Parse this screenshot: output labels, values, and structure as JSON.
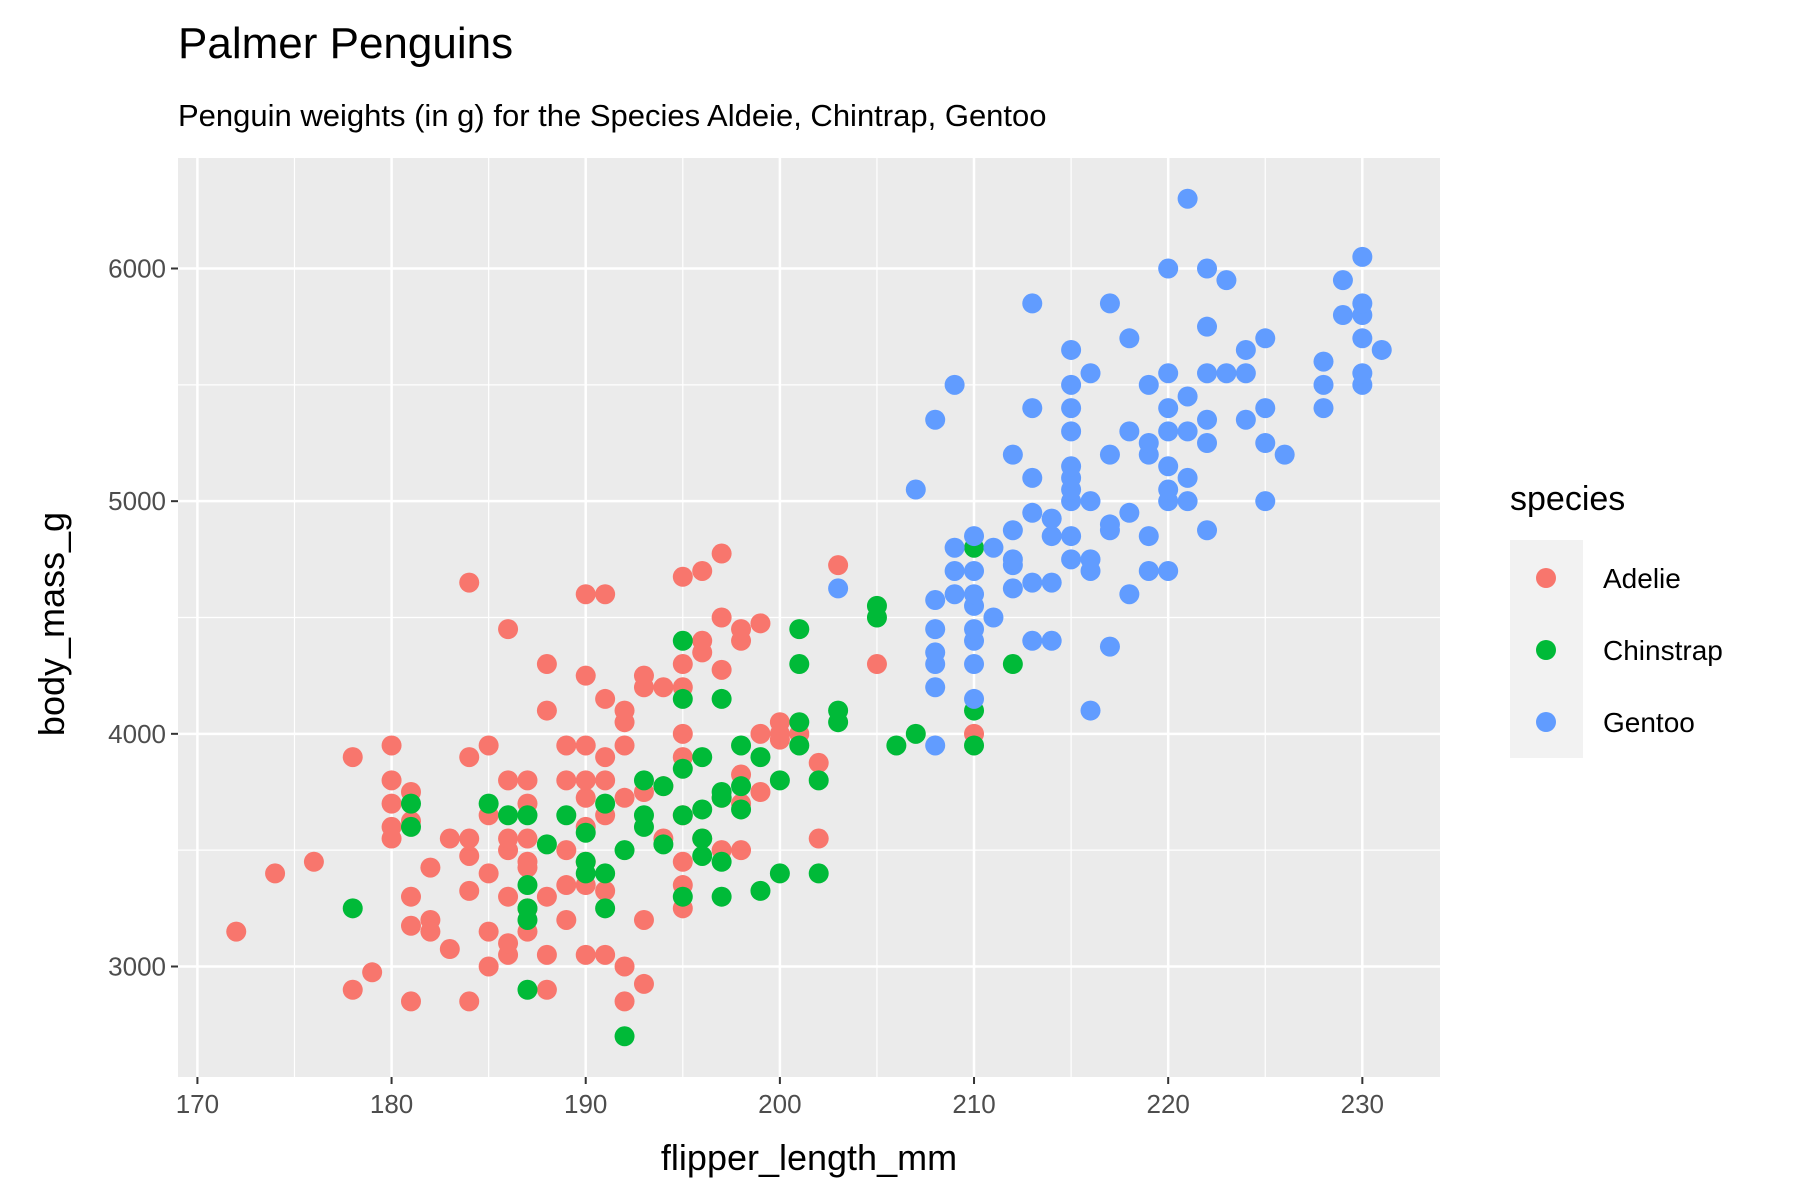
{
  "chart_data": {
    "type": "scatter",
    "title": "Palmer Penguins",
    "subtitle": "Penguin weights (in g) for the Species Aldeie, Chintrap, Gentoo",
    "xlabel": "flipper_length_mm",
    "ylabel": "body_mass_g",
    "xlim": [
      169,
      234
    ],
    "ylim": [
      2525,
      6475
    ],
    "xticks": [
      170,
      180,
      190,
      200,
      210,
      220,
      230
    ],
    "yticks": [
      3000,
      4000,
      5000,
      6000
    ],
    "grid": true,
    "legend": {
      "title": "species",
      "position": "right"
    },
    "series": [
      {
        "name": "Adelie",
        "color": "#F8766D",
        "points": [
          [
            172,
            3150
          ],
          [
            174,
            3400
          ],
          [
            176,
            3450
          ],
          [
            178,
            2900
          ],
          [
            178,
            3900
          ],
          [
            179,
            2975
          ],
          [
            180,
            3950
          ],
          [
            180,
            3800
          ],
          [
            180,
            3700
          ],
          [
            180,
            3600
          ],
          [
            180,
            3550
          ],
          [
            181,
            2850
          ],
          [
            181,
            3175
          ],
          [
            181,
            3300
          ],
          [
            181,
            3625
          ],
          [
            181,
            3750
          ],
          [
            182,
            3200
          ],
          [
            182,
            3150
          ],
          [
            182,
            3425
          ],
          [
            183,
            3075
          ],
          [
            183,
            3550
          ],
          [
            184,
            2850
          ],
          [
            184,
            3325
          ],
          [
            184,
            3475
          ],
          [
            184,
            3550
          ],
          [
            184,
            3900
          ],
          [
            184,
            4650
          ],
          [
            185,
            3000
          ],
          [
            185,
            3150
          ],
          [
            185,
            3400
          ],
          [
            185,
            3650
          ],
          [
            185,
            3950
          ],
          [
            186,
            3050
          ],
          [
            186,
            3100
          ],
          [
            186,
            3300
          ],
          [
            186,
            3500
          ],
          [
            186,
            3550
          ],
          [
            186,
            3800
          ],
          [
            186,
            4450
          ],
          [
            187,
            3150
          ],
          [
            187,
            3250
          ],
          [
            187,
            3425
          ],
          [
            187,
            3450
          ],
          [
            187,
            3550
          ],
          [
            187,
            3700
          ],
          [
            187,
            3800
          ],
          [
            188,
            2900
          ],
          [
            188,
            3050
          ],
          [
            188,
            3300
          ],
          [
            188,
            4100
          ],
          [
            188,
            4300
          ],
          [
            189,
            3200
          ],
          [
            189,
            3350
          ],
          [
            189,
            3500
          ],
          [
            189,
            3800
          ],
          [
            189,
            3950
          ],
          [
            190,
            3050
          ],
          [
            190,
            3350
          ],
          [
            190,
            3450
          ],
          [
            190,
            3600
          ],
          [
            190,
            3725
          ],
          [
            190,
            3800
          ],
          [
            190,
            3950
          ],
          [
            190,
            4250
          ],
          [
            190,
            4600
          ],
          [
            191,
            3050
          ],
          [
            191,
            3325
          ],
          [
            191,
            3650
          ],
          [
            191,
            3800
          ],
          [
            191,
            3900
          ],
          [
            191,
            4150
          ],
          [
            191,
            4600
          ],
          [
            192,
            2850
          ],
          [
            192,
            3000
          ],
          [
            192,
            3725
          ],
          [
            192,
            3950
          ],
          [
            192,
            4050
          ],
          [
            192,
            4100
          ],
          [
            193,
            2925
          ],
          [
            193,
            3200
          ],
          [
            193,
            3750
          ],
          [
            193,
            4200
          ],
          [
            193,
            4250
          ],
          [
            194,
            3550
          ],
          [
            194,
            3775
          ],
          [
            194,
            4200
          ],
          [
            195,
            3250
          ],
          [
            195,
            3350
          ],
          [
            195,
            3450
          ],
          [
            195,
            3650
          ],
          [
            195,
            3900
          ],
          [
            195,
            4000
          ],
          [
            195,
            4200
          ],
          [
            195,
            4300
          ],
          [
            195,
            4675
          ],
          [
            196,
            3550
          ],
          [
            196,
            4350
          ],
          [
            196,
            4400
          ],
          [
            196,
            4700
          ],
          [
            197,
            3500
          ],
          [
            197,
            3725
          ],
          [
            197,
            4275
          ],
          [
            197,
            4500
          ],
          [
            197,
            4775
          ],
          [
            198,
            3500
          ],
          [
            198,
            3700
          ],
          [
            198,
            3825
          ],
          [
            198,
            4400
          ],
          [
            198,
            4450
          ],
          [
            199,
            3750
          ],
          [
            199,
            4000
          ],
          [
            199,
            4475
          ],
          [
            200,
            3975
          ],
          [
            200,
            4000
          ],
          [
            200,
            4050
          ],
          [
            201,
            4000
          ],
          [
            202,
            3550
          ],
          [
            202,
            3875
          ],
          [
            203,
            4725
          ],
          [
            205,
            4300
          ],
          [
            210,
            4000
          ]
        ]
      },
      {
        "name": "Chinstrap",
        "color": "#00BA38",
        "points": [
          [
            178,
            3250
          ],
          [
            181,
            3600
          ],
          [
            181,
            3700
          ],
          [
            185,
            3700
          ],
          [
            186,
            3650
          ],
          [
            187,
            2900
          ],
          [
            187,
            3200
          ],
          [
            187,
            3250
          ],
          [
            187,
            3350
          ],
          [
            187,
            3650
          ],
          [
            188,
            3525
          ],
          [
            189,
            3650
          ],
          [
            190,
            3400
          ],
          [
            190,
            3450
          ],
          [
            190,
            3575
          ],
          [
            191,
            3250
          ],
          [
            191,
            3400
          ],
          [
            191,
            3700
          ],
          [
            192,
            2700
          ],
          [
            192,
            3500
          ],
          [
            193,
            3600
          ],
          [
            193,
            3650
          ],
          [
            193,
            3800
          ],
          [
            194,
            3525
          ],
          [
            194,
            3775
          ],
          [
            195,
            3300
          ],
          [
            195,
            3650
          ],
          [
            195,
            3850
          ],
          [
            195,
            4150
          ],
          [
            195,
            4400
          ],
          [
            196,
            3475
          ],
          [
            196,
            3550
          ],
          [
            196,
            3675
          ],
          [
            196,
            3900
          ],
          [
            197,
            3300
          ],
          [
            197,
            3450
          ],
          [
            197,
            3725
          ],
          [
            197,
            3750
          ],
          [
            197,
            4150
          ],
          [
            198,
            3675
          ],
          [
            198,
            3775
          ],
          [
            198,
            3950
          ],
          [
            199,
            3325
          ],
          [
            199,
            3900
          ],
          [
            200,
            3400
          ],
          [
            200,
            3800
          ],
          [
            201,
            3950
          ],
          [
            201,
            4050
          ],
          [
            201,
            4300
          ],
          [
            201,
            4450
          ],
          [
            202,
            3400
          ],
          [
            202,
            3800
          ],
          [
            203,
            4050
          ],
          [
            203,
            4100
          ],
          [
            205,
            4500
          ],
          [
            205,
            4550
          ],
          [
            206,
            3950
          ],
          [
            207,
            4000
          ],
          [
            210,
            3950
          ],
          [
            210,
            4100
          ],
          [
            210,
            4800
          ],
          [
            212,
            4300
          ]
        ]
      },
      {
        "name": "Gentoo",
        "color": "#619CFF",
        "points": [
          [
            203,
            4625
          ],
          [
            207,
            5050
          ],
          [
            208,
            3950
          ],
          [
            208,
            4200
          ],
          [
            208,
            4300
          ],
          [
            208,
            4350
          ],
          [
            208,
            4450
          ],
          [
            208,
            4575
          ],
          [
            208,
            5350
          ],
          [
            209,
            4600
          ],
          [
            209,
            4700
          ],
          [
            209,
            4800
          ],
          [
            209,
            5500
          ],
          [
            210,
            4150
          ],
          [
            210,
            4300
          ],
          [
            210,
            4400
          ],
          [
            210,
            4450
          ],
          [
            210,
            4550
          ],
          [
            210,
            4600
          ],
          [
            210,
            4700
          ],
          [
            210,
            4850
          ],
          [
            211,
            4500
          ],
          [
            211,
            4800
          ],
          [
            212,
            4625
          ],
          [
            212,
            4725
          ],
          [
            212,
            4750
          ],
          [
            212,
            4875
          ],
          [
            212,
            5200
          ],
          [
            213,
            4400
          ],
          [
            213,
            4650
          ],
          [
            213,
            4950
          ],
          [
            213,
            5100
          ],
          [
            213,
            5400
          ],
          [
            213,
            5850
          ],
          [
            214,
            4400
          ],
          [
            214,
            4650
          ],
          [
            214,
            4850
          ],
          [
            214,
            4925
          ],
          [
            215,
            4750
          ],
          [
            215,
            4850
          ],
          [
            215,
            5000
          ],
          [
            215,
            5050
          ],
          [
            215,
            5100
          ],
          [
            215,
            5150
          ],
          [
            215,
            5300
          ],
          [
            215,
            5400
          ],
          [
            215,
            5500
          ],
          [
            215,
            5650
          ],
          [
            216,
            4100
          ],
          [
            216,
            4700
          ],
          [
            216,
            4750
          ],
          [
            216,
            5000
          ],
          [
            216,
            5550
          ],
          [
            217,
            4375
          ],
          [
            217,
            4875
          ],
          [
            217,
            4900
          ],
          [
            217,
            5200
          ],
          [
            217,
            5850
          ],
          [
            218,
            4600
          ],
          [
            218,
            4950
          ],
          [
            218,
            5300
          ],
          [
            218,
            5700
          ],
          [
            219,
            4700
          ],
          [
            219,
            4850
          ],
          [
            219,
            5200
          ],
          [
            219,
            5250
          ],
          [
            219,
            5500
          ],
          [
            220,
            4700
          ],
          [
            220,
            5000
          ],
          [
            220,
            5050
          ],
          [
            220,
            5150
          ],
          [
            220,
            5300
          ],
          [
            220,
            5400
          ],
          [
            220,
            5550
          ],
          [
            220,
            6000
          ],
          [
            221,
            5000
          ],
          [
            221,
            5100
          ],
          [
            221,
            5300
          ],
          [
            221,
            5450
          ],
          [
            221,
            6300
          ],
          [
            222,
            4875
          ],
          [
            222,
            5250
          ],
          [
            222,
            5350
          ],
          [
            222,
            5550
          ],
          [
            222,
            5750
          ],
          [
            222,
            6000
          ],
          [
            223,
            5550
          ],
          [
            223,
            5950
          ],
          [
            224,
            5350
          ],
          [
            224,
            5550
          ],
          [
            224,
            5650
          ],
          [
            225,
            5000
          ],
          [
            225,
            5250
          ],
          [
            225,
            5400
          ],
          [
            225,
            5700
          ],
          [
            226,
            5200
          ],
          [
            228,
            5400
          ],
          [
            228,
            5500
          ],
          [
            228,
            5600
          ],
          [
            229,
            5800
          ],
          [
            229,
            5950
          ],
          [
            230,
            5500
          ],
          [
            230,
            5550
          ],
          [
            230,
            5700
          ],
          [
            230,
            5800
          ],
          [
            230,
            5850
          ],
          [
            230,
            6050
          ],
          [
            231,
            5650
          ]
        ]
      }
    ]
  }
}
